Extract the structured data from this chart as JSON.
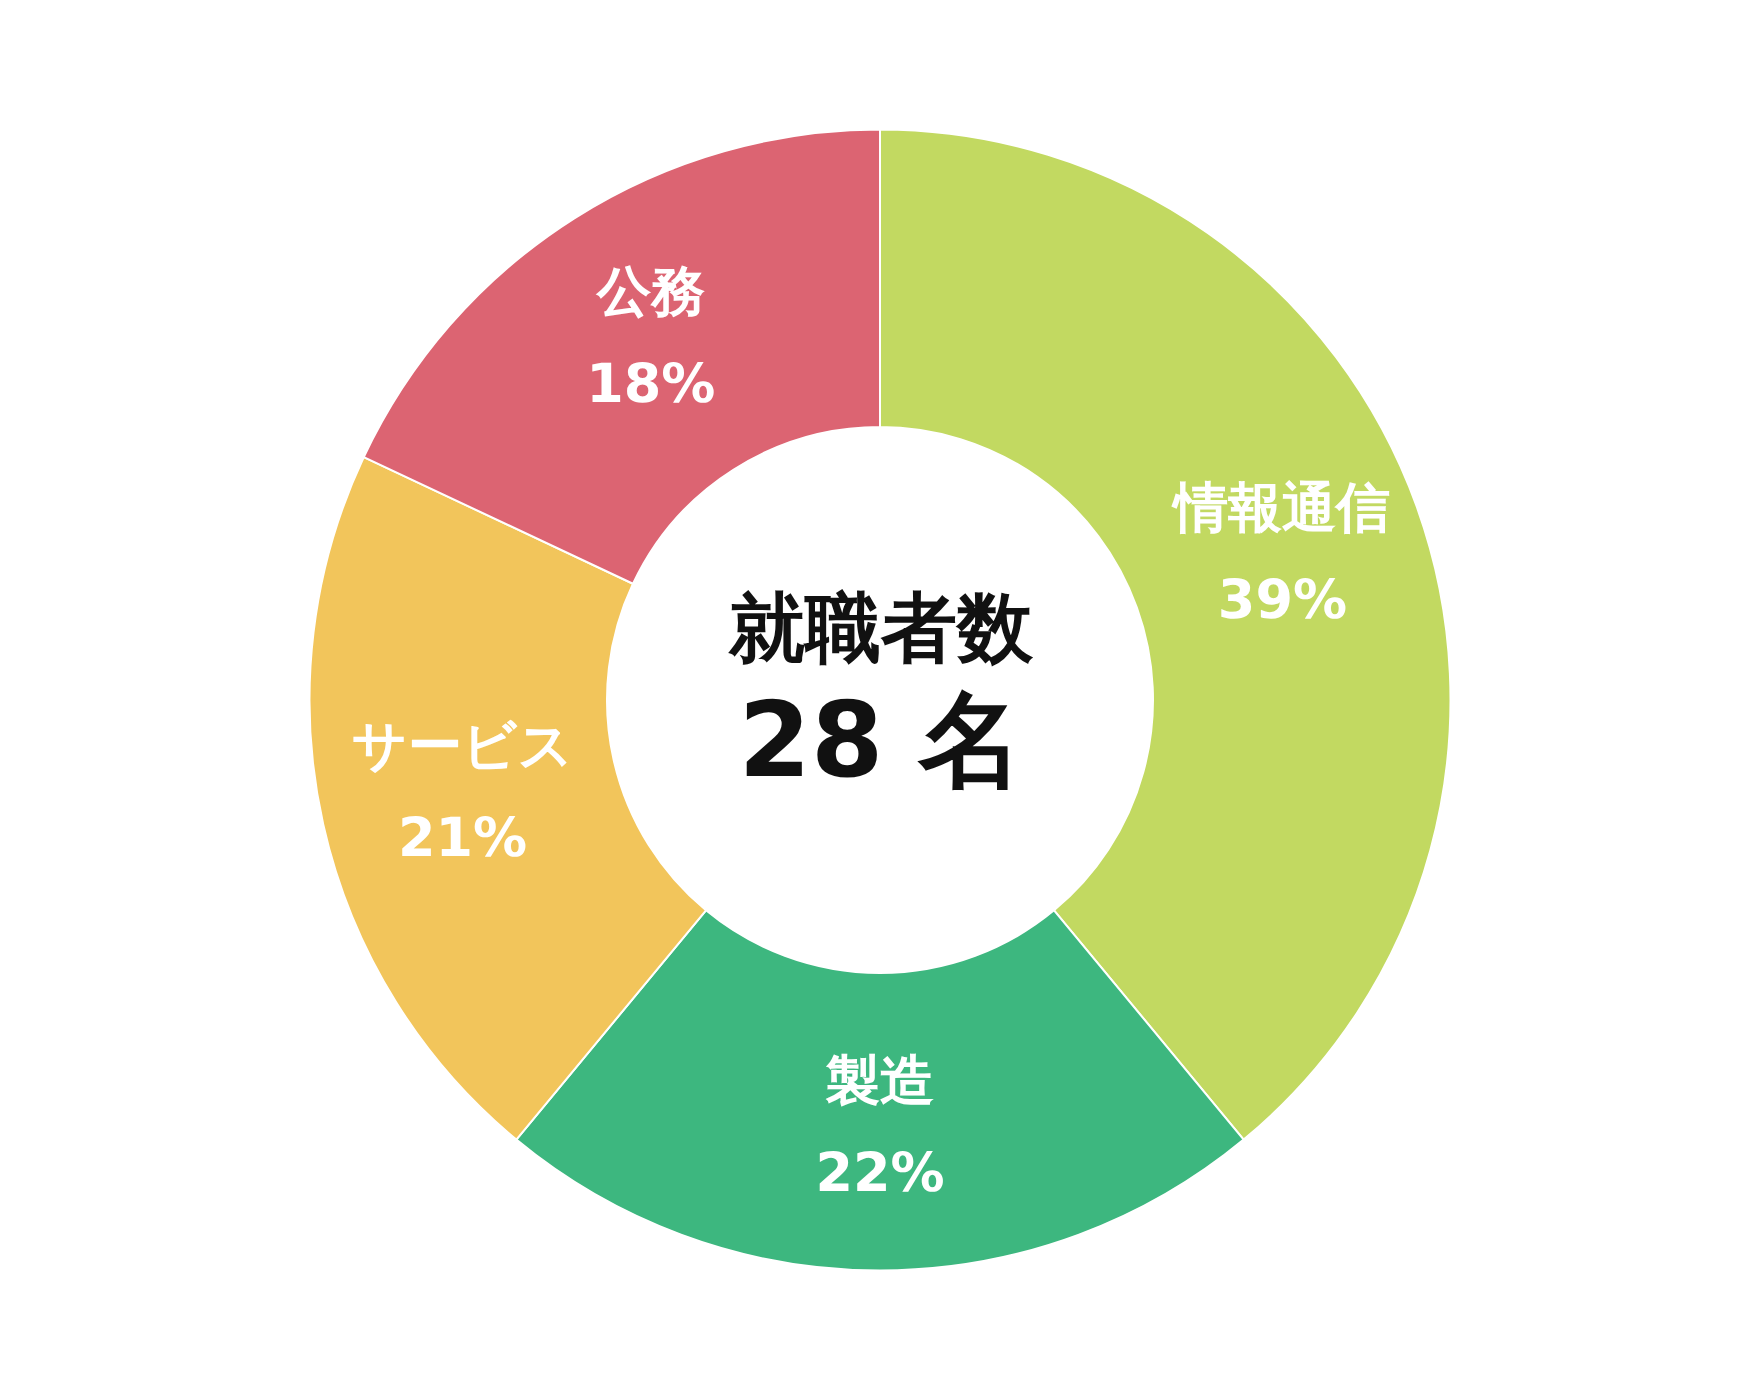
{
  "chart_data": {
    "type": "donut",
    "title": "就職者数",
    "subtitle": "28 名",
    "categories": [
      "情報通信",
      "製造",
      "サービス",
      "公務"
    ],
    "values": [
      39,
      22,
      21,
      18
    ],
    "value_labels": [
      "39%",
      "22%",
      "21%",
      "18%"
    ],
    "colors": [
      "#c2d961",
      "#3db77f",
      "#f2c55b",
      "#dc6472"
    ],
    "legend": false
  }
}
